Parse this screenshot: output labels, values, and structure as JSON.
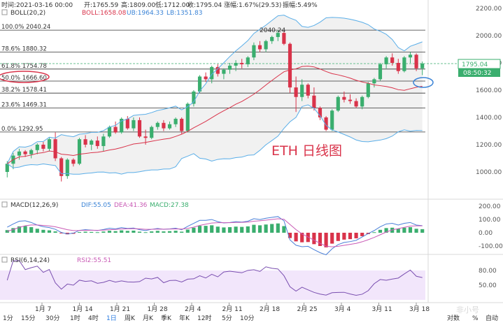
{
  "header": {
    "time": "时间:2021-03-16 00:00",
    "open": "开:1765.59",
    "high": "高:1809.00",
    "low": "低:1712.00",
    "close": "收:1795.04",
    "change": "涨幅:1.67%(29.53)",
    "amplitude": "振幅:5.49%"
  },
  "boll": {
    "label": "BOLL(20,2)",
    "mid": "BOLL:1658.08",
    "ub": "UB:1964.33",
    "lb": "LB:1351.83"
  },
  "fib": [
    {
      "label": "100.0% 2040.24",
      "value": 2040.24
    },
    {
      "label": "78.6% 1880.32",
      "value": 1880.32
    },
    {
      "label": "61.8% 1754.78",
      "value": 1754.78
    },
    {
      "label": "50.0% 1666.60",
      "value": 1666.6
    },
    {
      "label": "38.2% 1578.41",
      "value": 1578.41
    },
    {
      "label": "23.6% 1469.31",
      "value": 1469.31
    },
    {
      "label": "0.0% 1292.95",
      "value": 1292.95
    }
  ],
  "peak_label": "2040.24",
  "price_badge": "1795.04",
  "time_badge": "08:50:32",
  "overlay_text": "ETH  日线图",
  "price_axis": [
    "2200.00",
    "2000.00",
    "1800.00",
    "1600.00",
    "1400.00",
    "1200.00",
    "1000.00"
  ],
  "macd": {
    "label": "MACD(12,26,9)",
    "dif": "DIF:55.05",
    "dea": "DEA:41.36",
    "macd": "MACD:27.38"
  },
  "macd_axis": [
    "200.00",
    "100.00",
    "0.00",
    "-100.00"
  ],
  "rsi": {
    "label": "RSI(6,14,24)",
    "rsi2": "RSI2:55.51"
  },
  "rsi_axis": [
    "80.00",
    "50.00"
  ],
  "dates": [
    "1月 7",
    "1月 14",
    "1月 21",
    "1月 28",
    "2月 4",
    "2月 11",
    "2月 18",
    "2月 25",
    "3月 4",
    "3月 11",
    "3月 18"
  ],
  "periods": [
    "1分",
    "15分",
    "30分",
    "1时",
    "4时",
    "1日",
    "周K",
    "月K",
    "季K",
    "年K",
    "12时",
    "5分",
    "10分"
  ],
  "active_period": "1日",
  "scale_buttons": [
    "对数",
    "%",
    "自动"
  ],
  "watermark": "非小号",
  "colors": {
    "up": "#3aae6e",
    "down": "#d9334a",
    "mid": "#d9334a",
    "band": "#5aaee8",
    "macd_dif": "#4a7fd8",
    "macd_dea": "#c95ab5"
  },
  "candles": [
    [
      1000,
      1080,
      960,
      1060
    ],
    [
      1060,
      1140,
      1020,
      1120
    ],
    [
      1120,
      1170,
      1090,
      1150
    ],
    [
      1150,
      1160,
      1110,
      1130
    ],
    [
      1130,
      1170,
      1100,
      1160
    ],
    [
      1160,
      1210,
      1130,
      1200
    ],
    [
      1200,
      1220,
      1150,
      1170
    ],
    [
      1170,
      1250,
      1150,
      1240
    ],
    [
      1240,
      1290,
      1080,
      1100
    ],
    [
      1100,
      1110,
      930,
      970
    ],
    [
      970,
      1100,
      950,
      1090
    ],
    [
      1090,
      1100,
      1040,
      1060
    ],
    [
      1060,
      1250,
      1050,
      1240
    ],
    [
      1240,
      1270,
      1180,
      1200
    ],
    [
      1200,
      1240,
      1160,
      1230
    ],
    [
      1230,
      1260,
      1170,
      1190
    ],
    [
      1190,
      1280,
      1150,
      1260
    ],
    [
      1260,
      1340,
      1250,
      1330
    ],
    [
      1330,
      1370,
      1280,
      1290
    ],
    [
      1290,
      1400,
      1280,
      1390
    ],
    [
      1390,
      1410,
      1310,
      1320
    ],
    [
      1320,
      1400,
      1300,
      1380
    ],
    [
      1380,
      1400,
      1250,
      1260
    ],
    [
      1260,
      1310,
      1200,
      1250
    ],
    [
      1250,
      1340,
      1240,
      1330
    ],
    [
      1330,
      1370,
      1310,
      1360
    ],
    [
      1360,
      1380,
      1300,
      1320
    ],
    [
      1320,
      1370,
      1310,
      1350
    ],
    [
      1350,
      1400,
      1330,
      1390
    ],
    [
      1390,
      1400,
      1280,
      1300
    ],
    [
      1300,
      1510,
      1290,
      1500
    ],
    [
      1500,
      1600,
      1480,
      1590
    ],
    [
      1590,
      1710,
      1580,
      1700
    ],
    [
      1700,
      1730,
      1660,
      1680
    ],
    [
      1680,
      1780,
      1650,
      1770
    ],
    [
      1770,
      1790,
      1700,
      1720
    ],
    [
      1720,
      1760,
      1680,
      1750
    ],
    [
      1750,
      1800,
      1720,
      1780
    ],
    [
      1780,
      1820,
      1740,
      1800
    ],
    [
      1800,
      1830,
      1760,
      1790
    ],
    [
      1790,
      1850,
      1770,
      1840
    ],
    [
      1840,
      1950,
      1820,
      1930
    ],
    [
      1930,
      1960,
      1880,
      1900
    ],
    [
      1900,
      1970,
      1880,
      1960
    ],
    [
      1960,
      2000,
      1940,
      1990
    ],
    [
      1990,
      2040,
      1960,
      2020
    ],
    [
      2020,
      2030,
      1930,
      1940
    ],
    [
      1940,
      1950,
      1580,
      1620
    ],
    [
      1620,
      1700,
      1440,
      1550
    ],
    [
      1550,
      1680,
      1520,
      1640
    ],
    [
      1640,
      1650,
      1540,
      1560
    ],
    [
      1560,
      1620,
      1450,
      1470
    ],
    [
      1470,
      1480,
      1380,
      1400
    ],
    [
      1400,
      1410,
      1300,
      1310
    ],
    [
      1310,
      1460,
      1300,
      1450
    ],
    [
      1450,
      1560,
      1440,
      1550
    ],
    [
      1550,
      1590,
      1510,
      1530
    ],
    [
      1530,
      1570,
      1500,
      1520
    ],
    [
      1520,
      1540,
      1470,
      1480
    ],
    [
      1480,
      1560,
      1460,
      1550
    ],
    [
      1550,
      1660,
      1540,
      1650
    ],
    [
      1650,
      1690,
      1620,
      1680
    ],
    [
      1680,
      1800,
      1670,
      1790
    ],
    [
      1790,
      1850,
      1760,
      1840
    ],
    [
      1840,
      1870,
      1780,
      1800
    ],
    [
      1800,
      1830,
      1720,
      1740
    ],
    [
      1740,
      1850,
      1730,
      1840
    ],
    [
      1840,
      1880,
      1800,
      1860
    ],
    [
      1860,
      1870,
      1740,
      1760
    ],
    [
      1760,
      1810,
      1710,
      1795
    ]
  ],
  "macd_bars": [
    20,
    35,
    48,
    50,
    42,
    30,
    22,
    18,
    10,
    -5,
    -12,
    -8,
    5,
    8,
    6,
    4,
    9,
    15,
    12,
    18,
    14,
    16,
    8,
    4,
    10,
    14,
    10,
    12,
    15,
    8,
    24,
    38,
    52,
    52,
    56,
    46,
    40,
    42,
    46,
    44,
    48,
    60,
    56,
    62,
    66,
    70,
    50,
    -40,
    -65,
    -72,
    -70,
    -86,
    -100,
    -110,
    -82,
    -62,
    -52,
    -48,
    -42,
    -26,
    -10,
    4,
    22,
    35,
    38,
    30,
    38,
    42,
    30,
    27
  ]
}
